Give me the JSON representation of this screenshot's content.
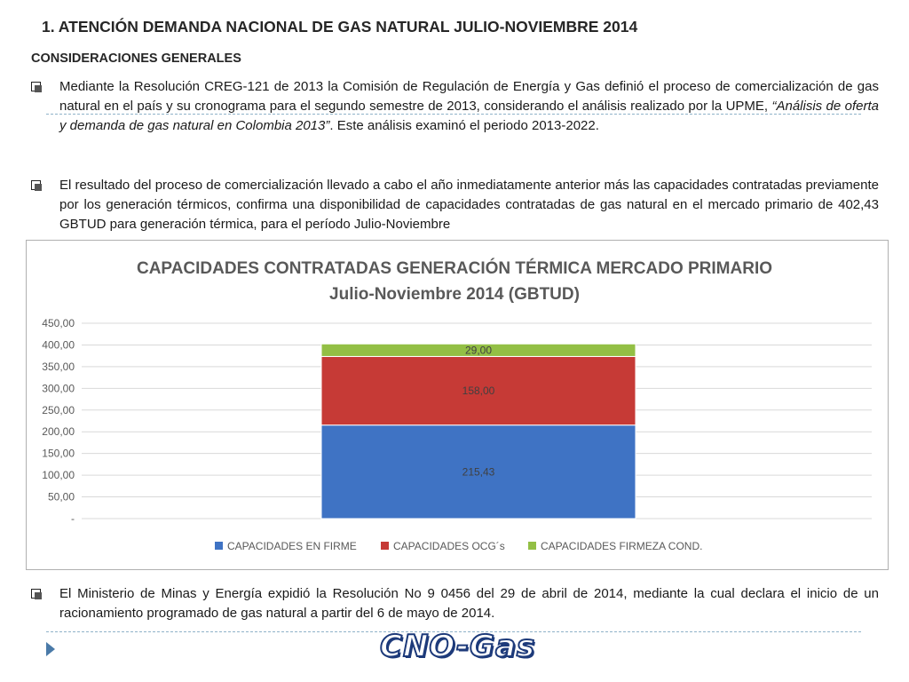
{
  "slide": {
    "title": "1. ATENCIÓN DEMANDA NACIONAL DE GAS NATURAL JULIO-NOVIEMBRE 2014",
    "section": "CONSIDERACIONES GENERALES",
    "bullet1": {
      "text_a": "Mediante la Resolución CREG-121 de 2013 la Comisión de Regulación de Energía y Gas definió el proceso de comercialización de gas natural en el país y su cronograma para el segundo semestre de 2013, considerando el análisis realizado por la UPME, ",
      "text_italic": "“Análisis de oferta y demanda de gas natural en Colombia 2013”",
      "text_b": ". Este análisis examinó el periodo 2013-2022."
    },
    "bullet2": {
      "text": "El resultado del proceso de comercialización llevado a cabo el año inmediatamente anterior más las capacidades contratadas previamente por los generación térmicos, confirma una disponibilidad de capacidades contratadas de gas natural en el mercado primario de 402,43 GBTUD para  generación térmica, para el período Julio-Noviembre"
    },
    "bullet3": {
      "text": "El Ministerio de Minas y Energía expidió la Resolución No 9 0456 del 29 de abril de 2014, mediante la cual declara el inicio de un racionamiento programado de gas natural a partir del 6 de mayo de 2014."
    },
    "logo": "CNO-Gas"
  },
  "chart_data": {
    "type": "bar",
    "stacked": true,
    "title": "CAPACIDADES CONTRATADAS GENERACIÓN TÉRMICA MERCADO PRIMARIO",
    "subtitle": "Julio-Noviembre 2014 (GBTUD)",
    "categories": [
      ""
    ],
    "series": [
      {
        "name": "CAPACIDADES EN FIRME",
        "values": [
          215.43
        ],
        "label": "215,43",
        "color": "#3f73c4"
      },
      {
        "name": "CAPACIDADES OCG´s",
        "values": [
          158.0
        ],
        "label": "158,00",
        "color": "#c63a36"
      },
      {
        "name": "CAPACIDADES FIRMEZA COND.",
        "values": [
          29.0
        ],
        "label": "29,00",
        "color": "#93bf45"
      }
    ],
    "yticks": [
      "-",
      "50,00",
      "100,00",
      "150,00",
      "200,00",
      "250,00",
      "300,00",
      "350,00",
      "400,00",
      "450,00"
    ],
    "ylim": [
      0,
      450
    ],
    "grid": true,
    "legend": "bottom"
  }
}
